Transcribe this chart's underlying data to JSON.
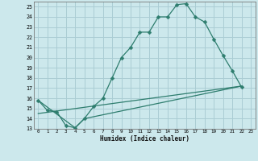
{
  "xlabel": "Humidex (Indice chaleur)",
  "bg_color": "#cce8ec",
  "grid_color": "#aacdd4",
  "line_color": "#2e7d6e",
  "xlim": [
    -0.5,
    23.5
  ],
  "ylim": [
    13,
    25.5
  ],
  "xticks": [
    0,
    1,
    2,
    3,
    4,
    5,
    6,
    7,
    8,
    9,
    10,
    11,
    12,
    13,
    14,
    15,
    16,
    17,
    18,
    19,
    20,
    21,
    22,
    23
  ],
  "yticks": [
    13,
    14,
    15,
    16,
    17,
    18,
    19,
    20,
    21,
    22,
    23,
    24,
    25
  ],
  "curve1_x": [
    0,
    1,
    2,
    3,
    4,
    5,
    6,
    7,
    8,
    9,
    10,
    11,
    12,
    13,
    14,
    15,
    16,
    17,
    18,
    19,
    20,
    21,
    22
  ],
  "curve1_y": [
    15.8,
    14.8,
    14.7,
    13.3,
    13.1,
    14.0,
    15.2,
    16.0,
    18.0,
    20.0,
    21.0,
    22.5,
    22.5,
    24.0,
    24.0,
    25.2,
    25.3,
    24.0,
    23.5,
    21.8,
    20.2,
    18.7,
    17.1
  ],
  "curve2_x": [
    0,
    22
  ],
  "curve2_y": [
    14.5,
    17.2
  ],
  "curve3_x": [
    0,
    4,
    5,
    22
  ],
  "curve3_y": [
    15.8,
    13.1,
    14.0,
    17.2
  ]
}
